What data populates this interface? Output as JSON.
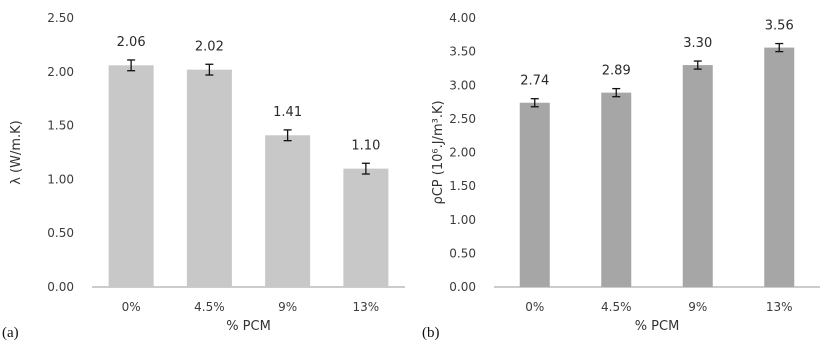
{
  "chart_data": [
    {
      "type": "bar",
      "panel_label": "(a)",
      "categories": [
        "0%",
        "4.5%",
        "9%",
        "13%"
      ],
      "values": [
        2.06,
        2.02,
        1.41,
        1.1
      ],
      "value_labels": [
        "2.06",
        "2.02",
        "1.41",
        "1.10"
      ],
      "error": [
        0.05,
        0.05,
        0.05,
        0.05
      ],
      "xlabel": "% PCM",
      "ylabel": "λ (W/m.K)",
      "ylim": [
        0,
        2.5
      ],
      "yticks": [
        0,
        0.5,
        1.0,
        1.5,
        2.0,
        2.5
      ],
      "ytick_labels": [
        "0.00",
        "0.50",
        "1.00",
        "1.50",
        "2.00",
        "2.50"
      ],
      "bar_color": "#c8c8c8",
      "grid": false
    },
    {
      "type": "bar",
      "panel_label": "(b)",
      "categories": [
        "0%",
        "4.5%",
        "9%",
        "13%"
      ],
      "values": [
        2.74,
        2.89,
        3.3,
        3.56
      ],
      "value_labels": [
        "2.74",
        "2.89",
        "3.30",
        "3.56"
      ],
      "error": [
        0.06,
        0.06,
        0.06,
        0.06
      ],
      "xlabel": "% PCM",
      "ylabel": "ρCP (10⁶.J/m³.K)",
      "ylim": [
        0,
        4.0
      ],
      "yticks": [
        0,
        0.5,
        1.0,
        1.5,
        2.0,
        2.5,
        3.0,
        3.5,
        4.0
      ],
      "ytick_labels": [
        "0.00",
        "0.50",
        "1.00",
        "1.50",
        "2.00",
        "2.50",
        "3.00",
        "3.50",
        "4.00"
      ],
      "bar_color": "#a6a6a6",
      "grid": false
    }
  ]
}
